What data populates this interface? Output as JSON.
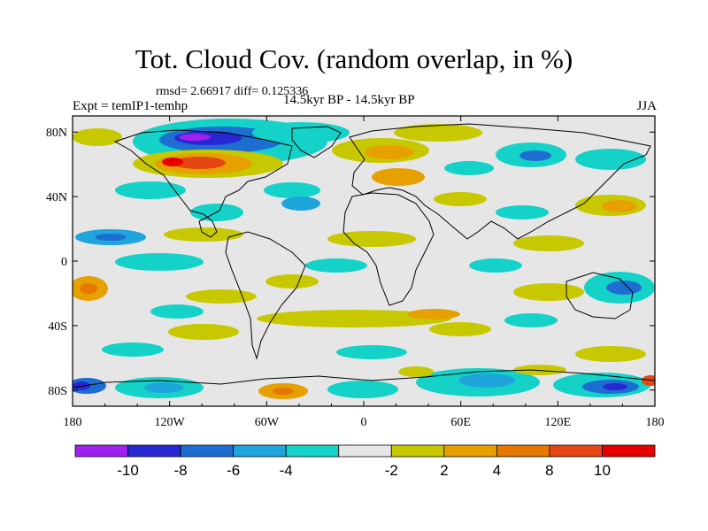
{
  "title": "Tot. Cloud Cov. (random overlap, in %)",
  "stats": "rmsd= 2.66917  diff= 0.125336",
  "experiment": "Expt = temIP1-temhp",
  "period": "14.5kyr BP - 14.5kyr BP",
  "season": "JJA",
  "map": {
    "lon_ticks": [
      "180",
      "120W",
      "60W",
      "0",
      "60E",
      "120E",
      "180"
    ],
    "lat_ticks": [
      "80N",
      "40N",
      "0",
      "40S",
      "80S"
    ],
    "background": "#e6e6e6",
    "coastline_color": "#000000"
  },
  "colorbar": {
    "colors": [
      "#a020f0",
      "#2828d2",
      "#1e6ed2",
      "#1ea5dc",
      "#14d2c8",
      "#e6e6e6",
      "#c8c800",
      "#e6a000",
      "#e67800",
      "#e64614",
      "#e60000"
    ],
    "labels": [
      "-10",
      "-8",
      "-6",
      "-4",
      "-2",
      "2",
      "4",
      "8",
      "10"
    ]
  }
}
